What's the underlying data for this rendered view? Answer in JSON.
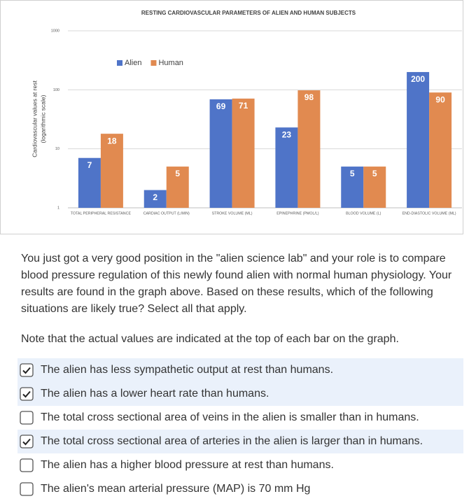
{
  "chart_data": {
    "type": "bar",
    "title": "RESTING CARDIOVASCULAR PARAMETERS OF ALIEN AND HUMAN SUBJECTS",
    "y_label": [
      "Cardiovascular values at rest",
      "(logarithmic scale)"
    ],
    "categories": [
      "TOTAL PERIPHERAL RESISTANCE",
      "CARDIAC OUTPUT (L/MIN)",
      "STROKE VOLUME (ML)",
      "EPINEPHRINE (PMOL/L)",
      "BLOOD VOLUME (L)",
      "END-DIASTOLIC VOLUME (ML)"
    ],
    "series": [
      {
        "name": "Alien",
        "color": "#4f74c8",
        "values": [
          7,
          2,
          69,
          23,
          5,
          200
        ]
      },
      {
        "name": "Human",
        "color": "#e18a50",
        "values": [
          18,
          5,
          71,
          98,
          5,
          90
        ]
      }
    ],
    "log_scale": true,
    "ylim": [
      1,
      1000
    ],
    "yticks": [
      1,
      10,
      100,
      1000
    ],
    "grid": true,
    "legend": "top-left"
  },
  "question": {
    "paragraph": "You just got a very good position in the \"alien science lab\" and your role is to compare blood pressure regulation of this newly found alien with normal human physiology. Your results are found in the graph above. Based on these results, which of the following situations are likely true? Select all that apply.",
    "note": "Note that the actual values are indicated at the top of each bar on the graph."
  },
  "options": [
    {
      "text": "The alien has less sympathetic output at rest than humans.",
      "checked": true
    },
    {
      "text": "The alien has a lower heart rate than humans.",
      "checked": true
    },
    {
      "text": "The total cross sectional area of veins in the alien is smaller than in humans.",
      "checked": false
    },
    {
      "text": "The total cross sectional area of arteries in the alien is larger than in humans.",
      "checked": true
    },
    {
      "text": "The alien has a higher blood pressure at rest than humans.",
      "checked": false
    },
    {
      "text": "The alien's mean arterial pressure (MAP) is 70 mm Hg",
      "checked": false
    }
  ]
}
